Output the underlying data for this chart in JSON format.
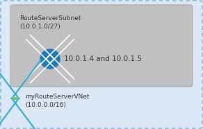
{
  "outer_bg": "#dce8f5",
  "outer_border_color": "#7ab0d4",
  "inner_bg": "#c0c0c0",
  "inner_border_color": "#aaaaaa",
  "subnet_label": "RouteServerSubnet",
  "subnet_cidr": "(10.0.1.0/27)",
  "ip_label": "10.0.1.4 and 10.0.1.5",
  "vnet_label": "myRouteServerVNet",
  "vnet_cidr": "(10.0.0.0/16)",
  "icon_color": "#1a7abf",
  "icon_arrow_color": "#ffffff",
  "vnet_icon_color": "#29abe2",
  "vnet_dots_color": "#7ec855",
  "text_color": "#333333",
  "subnet_fontsize": 6.5,
  "ip_fontsize": 7.5,
  "vnet_fontsize": 6.5
}
